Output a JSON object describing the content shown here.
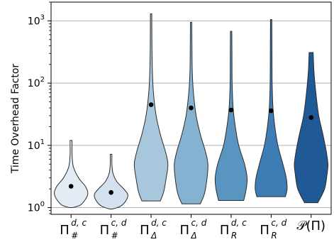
{
  "chart_data": {
    "type": "violin",
    "title": "",
    "xlabel": "",
    "ylabel": "Time Overhead Factor",
    "y_scale": "log",
    "ylim": [
      0.78,
      2000
    ],
    "yticks": [
      1,
      10,
      100,
      1000
    ],
    "yticklabels": [
      "10^0",
      "10^1",
      "10^2",
      "10^3"
    ],
    "grid": "horizontal",
    "categories": [
      {
        "base": "Π",
        "sup": "d, c",
        "sub": "#"
      },
      {
        "base": "Π",
        "sup": "c, d",
        "sub": "#"
      },
      {
        "base": "Π",
        "sup": "d, c",
        "sub": "Δ"
      },
      {
        "base": "Π",
        "sup": "c, d",
        "sub": "Δ"
      },
      {
        "base": "Π",
        "sup": "d, c",
        "sub": "R"
      },
      {
        "base": "Π",
        "sup": "c, d",
        "sub": "R"
      },
      {
        "base": "𝒫(Π)",
        "sup": "",
        "sub": ""
      }
    ],
    "series": [
      {
        "min": 1.0,
        "max": 12.0,
        "marker": 2.2,
        "fill": "#e3ebf5",
        "profile": [
          [
            1.0,
            0.1
          ],
          [
            1.1,
            0.55
          ],
          [
            1.35,
            0.85
          ],
          [
            1.7,
            1.0
          ],
          [
            2.2,
            0.85
          ],
          [
            3.0,
            0.45
          ],
          [
            4.5,
            0.14
          ],
          [
            7,
            0.06
          ],
          [
            12,
            0.06
          ]
        ]
      },
      {
        "min": 0.95,
        "max": 7.2,
        "marker": 1.75,
        "fill": "#d4e2f0",
        "profile": [
          [
            0.95,
            0.1
          ],
          [
            1.05,
            0.55
          ],
          [
            1.25,
            0.85
          ],
          [
            1.6,
            1.0
          ],
          [
            2.0,
            0.75
          ],
          [
            2.6,
            0.35
          ],
          [
            3.5,
            0.12
          ],
          [
            5,
            0.05
          ],
          [
            7.2,
            0.05
          ]
        ]
      },
      {
        "min": 1.28,
        "max": 1300,
        "marker": 45,
        "fill": "#a8c7dd",
        "profile": [
          [
            1.28,
            0.55
          ],
          [
            1.8,
            0.75
          ],
          [
            3,
            0.9
          ],
          [
            5,
            1.0
          ],
          [
            8,
            0.85
          ],
          [
            15,
            0.55
          ],
          [
            30,
            0.3
          ],
          [
            70,
            0.14
          ],
          [
            150,
            0.08
          ],
          [
            400,
            0.05
          ],
          [
            1300,
            0.04
          ]
        ]
      },
      {
        "min": 1.15,
        "max": 950,
        "marker": 40,
        "fill": "#86b2d2",
        "profile": [
          [
            1.15,
            0.55
          ],
          [
            1.7,
            0.8
          ],
          [
            3,
            0.95
          ],
          [
            5,
            1.0
          ],
          [
            8,
            0.85
          ],
          [
            15,
            0.55
          ],
          [
            30,
            0.3
          ],
          [
            70,
            0.14
          ],
          [
            150,
            0.07
          ],
          [
            400,
            0.05
          ],
          [
            950,
            0.04
          ]
        ]
      },
      {
        "min": 1.3,
        "max": 680,
        "marker": 37,
        "fill": "#5a95c2",
        "profile": [
          [
            1.3,
            0.75
          ],
          [
            2,
            0.9
          ],
          [
            3,
            0.95
          ],
          [
            5,
            0.8
          ],
          [
            10,
            0.45
          ],
          [
            20,
            0.25
          ],
          [
            40,
            0.12
          ],
          [
            100,
            0.06
          ],
          [
            300,
            0.05
          ],
          [
            680,
            0.04
          ]
        ]
      },
      {
        "min": 1.5,
        "max": 1050,
        "marker": 36,
        "fill": "#3d7cb5",
        "profile": [
          [
            1.5,
            0.85
          ],
          [
            2,
            0.95
          ],
          [
            3,
            0.9
          ],
          [
            5,
            0.7
          ],
          [
            10,
            0.4
          ],
          [
            20,
            0.22
          ],
          [
            40,
            0.11
          ],
          [
            100,
            0.06
          ],
          [
            300,
            0.05
          ],
          [
            1050,
            0.04
          ]
        ]
      },
      {
        "min": 1.2,
        "max": 310,
        "marker": 28,
        "fill": "#1f5a96",
        "profile": [
          [
            1.2,
            0.4
          ],
          [
            2,
            0.8
          ],
          [
            3.5,
            0.95
          ],
          [
            5,
            1.0
          ],
          [
            8,
            0.9
          ],
          [
            15,
            0.7
          ],
          [
            30,
            0.45
          ],
          [
            70,
            0.28
          ],
          [
            150,
            0.17
          ],
          [
            310,
            0.12
          ]
        ]
      }
    ]
  }
}
